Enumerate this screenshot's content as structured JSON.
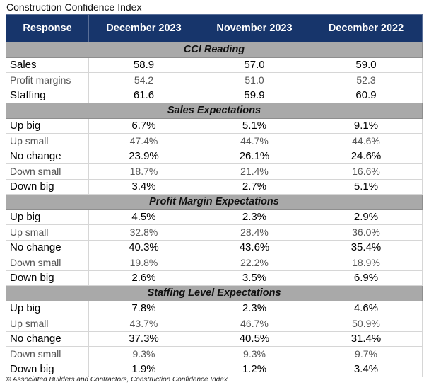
{
  "title": "Construction Confidence Index",
  "columns": [
    "Response",
    "December 2023",
    "November 2023",
    "December 2022"
  ],
  "sections": [
    {
      "label": "CCI Reading",
      "rows": [
        {
          "label": "Sales",
          "values": [
            "58.9",
            "57.0",
            "59.0"
          ]
        },
        {
          "label": "Profit margins",
          "values": [
            "54.2",
            "51.0",
            "52.3"
          ]
        },
        {
          "label": "Staffing",
          "values": [
            "61.6",
            "59.9",
            "60.9"
          ]
        }
      ]
    },
    {
      "label": "Sales Expectations",
      "rows": [
        {
          "label": "Up big",
          "values": [
            "6.7%",
            "5.1%",
            "9.1%"
          ]
        },
        {
          "label": "Up small",
          "values": [
            "47.4%",
            "44.7%",
            "44.6%"
          ]
        },
        {
          "label": "No change",
          "values": [
            "23.9%",
            "26.1%",
            "24.6%"
          ]
        },
        {
          "label": "Down small",
          "values": [
            "18.7%",
            "21.4%",
            "16.6%"
          ]
        },
        {
          "label": "Down big",
          "values": [
            "3.4%",
            "2.7%",
            "5.1%"
          ]
        }
      ]
    },
    {
      "label": "Profit Margin Expectations",
      "rows": [
        {
          "label": "Up big",
          "values": [
            "4.5%",
            "2.3%",
            "2.9%"
          ]
        },
        {
          "label": "Up small",
          "values": [
            "32.8%",
            "28.4%",
            "36.0%"
          ]
        },
        {
          "label": "No change",
          "values": [
            "40.3%",
            "43.6%",
            "35.4%"
          ]
        },
        {
          "label": "Down small",
          "values": [
            "19.8%",
            "22.2%",
            "18.9%"
          ]
        },
        {
          "label": "Down big",
          "values": [
            "2.6%",
            "3.5%",
            "6.9%"
          ]
        }
      ]
    },
    {
      "label": "Staffing Level Expectations",
      "rows": [
        {
          "label": "Up big",
          "values": [
            "7.8%",
            "2.3%",
            "4.6%"
          ]
        },
        {
          "label": "Up small",
          "values": [
            "43.7%",
            "46.7%",
            "50.9%"
          ]
        },
        {
          "label": "No change",
          "values": [
            "37.3%",
            "40.5%",
            "31.4%"
          ]
        },
        {
          "label": "Down small",
          "values": [
            "9.3%",
            "9.3%",
            "9.7%"
          ]
        },
        {
          "label": "Down big",
          "values": [
            "1.9%",
            "1.2%",
            "3.4%"
          ]
        }
      ]
    }
  ],
  "footer": "© Associated Builders and Contractors, Construction Confidence Index",
  "colors": {
    "header_bg": "#17356b",
    "section_bg": "#a9a9a9"
  }
}
